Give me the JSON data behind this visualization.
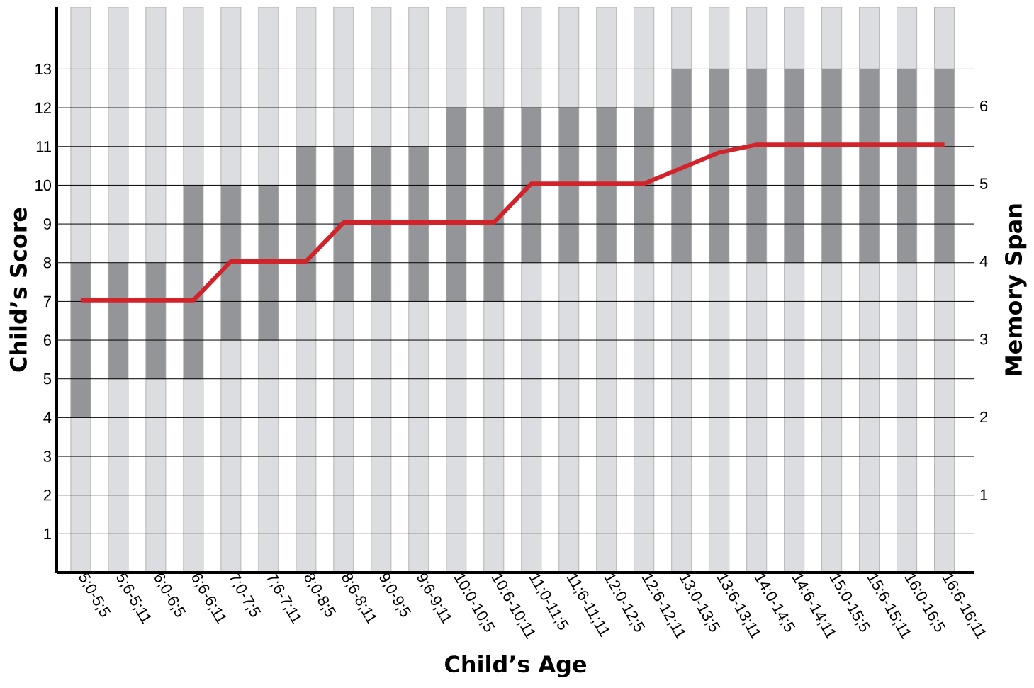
{
  "chart_data": {
    "type": "bar",
    "stacked": true,
    "xlabel": "Child’s Age",
    "ylabel": "Child’s Score",
    "y2label": "Memory Span",
    "categories": [
      "5;0-5;5",
      "5;6-5;11",
      "6;0-6;5",
      "6;6-6;11",
      "7;0-7;5",
      "7;6-7;11",
      "8;0-8;5",
      "8;6-8;11",
      "9;0-9;5",
      "9;6-9;11",
      "10;0-10;5",
      "10;6-10;11",
      "11;0-11;5",
      "11;6-11;11",
      "12;0-12;5",
      "12;6-12;11",
      "13;0-13;5",
      "13;6-13;11",
      "14;0-14;5",
      "14;6-14;11",
      "15;0-15;5",
      "15;6-15;11",
      "16;0-16;5",
      "16;6-16;11"
    ],
    "ylim": [
      0,
      14.6
    ],
    "yticks": [
      1,
      2,
      3,
      4,
      5,
      6,
      7,
      8,
      9,
      10,
      11,
      12,
      13
    ],
    "y2lim": [
      0,
      7.27
    ],
    "y2ticks": [
      1,
      2,
      3,
      4,
      5,
      6
    ],
    "grid": "y",
    "series": [
      {
        "color": "#dcdde0",
        "values": [
          4,
          5,
          5,
          5,
          6,
          6,
          7,
          7,
          7,
          7,
          7,
          7,
          8,
          8,
          8,
          8,
          8,
          8,
          8,
          8,
          8,
          8,
          8,
          8
        ]
      },
      {
        "color": "#939598",
        "values": [
          4,
          3,
          3,
          5,
          4,
          4,
          4,
          4,
          4,
          4,
          5,
          5,
          4,
          4,
          4,
          4,
          5,
          5,
          5,
          5,
          5,
          5,
          5,
          5
        ]
      },
      {
        "color": "#dcdde0",
        "values": [
          6.6,
          6.6,
          6.6,
          4.6,
          4.6,
          4.6,
          3.6,
          3.6,
          3.6,
          3.6,
          2.6,
          2.6,
          2.6,
          2.6,
          2.6,
          2.6,
          1.6,
          1.6,
          1.6,
          1.6,
          1.6,
          1.6,
          1.6,
          1.6
        ]
      },
      {
        "type": "line",
        "axis": "y2",
        "color": "#d2232a",
        "values": [
          3.5,
          3.5,
          3.5,
          3.5,
          4,
          4,
          4,
          4.5,
          4.5,
          4.5,
          4.5,
          4.5,
          5,
          5,
          5,
          5,
          5.2,
          5.4,
          5.5,
          5.5,
          5.5,
          5.5,
          5.5,
          5.5
        ]
      }
    ]
  }
}
